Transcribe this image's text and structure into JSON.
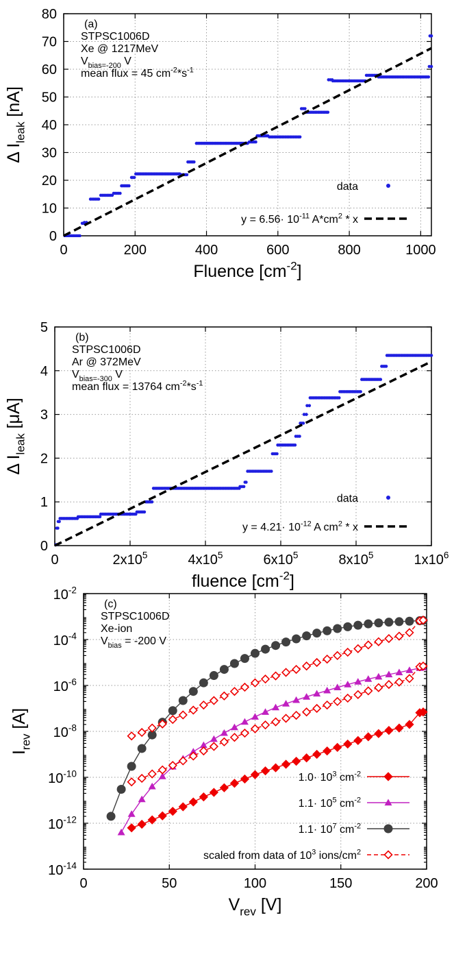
{
  "chart_data": [
    {
      "type": "scatter",
      "panel": "(a)",
      "annotation": [
        "STPSC1006D",
        "Xe @ 1217MeV",
        "V_bias=-200 V",
        "mean flux = 45 cm^-2*s^-1"
      ],
      "xlabel": "Fluence [cm^-2]",
      "ylabel": "Δ I_leak [nA]",
      "xlim": [
        0,
        1030
      ],
      "ylim": [
        0,
        80
      ],
      "xticks": [
        0,
        200,
        400,
        600,
        800,
        1000
      ],
      "xtick_labels": [
        "0",
        "200",
        "400",
        "600",
        "800",
        "1000"
      ],
      "yticks": [
        0,
        10,
        20,
        30,
        40,
        50,
        60,
        70,
        80
      ],
      "ytick_labels": [
        "0",
        "10",
        "20",
        "30",
        "40",
        "50",
        "60",
        "70",
        "80"
      ],
      "grid": true,
      "legend_position": "bottom-right",
      "series": [
        {
          "name": "data",
          "style": "points",
          "color": "#1f1fe0",
          "segments": [
            {
              "x": [
                0,
                45
              ],
              "y": 0
            },
            {
              "x": [
                52,
                56
              ],
              "y": 4.5
            },
            {
              "x": [
                58,
                64
              ],
              "y": 4.8
            },
            {
              "x": [
                75,
                98
              ],
              "y": 13.2
            },
            {
              "x": [
                104,
                136
              ],
              "y": 14.6
            },
            {
              "x": [
                140,
                158
              ],
              "y": 15.3
            },
            {
              "x": [
                162,
                183
              ],
              "y": 18.0
            },
            {
              "x": [
                190,
                198
              ],
              "y": 21.0
            },
            {
              "x": [
                202,
                325
              ],
              "y": 22.3
            },
            {
              "x": [
                328,
                345
              ],
              "y": 22.0
            },
            {
              "x": [
                348,
                365
              ],
              "y": 26.6
            },
            {
              "x": [
                372,
                515
              ],
              "y": 33.3
            },
            {
              "x": [
                520,
                538
              ],
              "y": 33.8
            },
            {
              "x": [
                542,
                572
              ],
              "y": 36.0
            },
            {
              "x": [
                576,
                662
              ],
              "y": 35.6
            },
            {
              "x": [
                666,
                676
              ],
              "y": 45.8
            },
            {
              "x": [
                678,
                740
              ],
              "y": 44.5
            },
            {
              "x": [
                742,
                752
              ],
              "y": 56.2
            },
            {
              "x": [
                754,
                845
              ],
              "y": 55.8
            },
            {
              "x": [
                848,
                880
              ],
              "y": 57.8
            },
            {
              "x": [
                882,
                1022
              ],
              "y": 57.2
            },
            {
              "x": [
                1024,
                1030
              ],
              "y": 61.0
            },
            {
              "x": [
                1026,
                1030
              ],
              "y": 72.0
            }
          ]
        },
        {
          "name": "y = 6.56· 10^-11 A*cm^2 * x",
          "style": "dashed-line",
          "color": "#000000",
          "slope": 0.0656
        }
      ]
    },
    {
      "type": "scatter",
      "panel": "(b)",
      "annotation": [
        "STPSC1006D",
        "Ar @ 372MeV",
        "V_bias=-300 V",
        "mean flux = 13764 cm^-2*s^-1"
      ],
      "xlabel": "fluence [cm^-2]",
      "ylabel": "Δ I_leak [μA]",
      "xlim": [
        0,
        1000000
      ],
      "ylim": [
        0,
        5
      ],
      "xticks": [
        0,
        200000,
        400000,
        600000,
        800000,
        1000000
      ],
      "xtick_labels": [
        "0",
        "2x10^5",
        "4x10^5",
        "6x10^5",
        "8x10^5",
        "1x10^6"
      ],
      "yticks": [
        0,
        1,
        2,
        3,
        4,
        5
      ],
      "ytick_labels": [
        "0",
        "1",
        "2",
        "3",
        "4",
        "5"
      ],
      "grid": true,
      "legend_position": "bottom-right",
      "series": [
        {
          "name": "data",
          "style": "points",
          "color": "#1f1fe0",
          "segments": [
            {
              "x": [
                0,
                4000
              ],
              "y": 0.02
            },
            {
              "x": [
                5000,
                8000
              ],
              "y": 0.4
            },
            {
              "x": [
                9000,
                12000
              ],
              "y": 0.55
            },
            {
              "x": [
                14000,
                60000
              ],
              "y": 0.62
            },
            {
              "x": [
                62000,
                120000
              ],
              "y": 0.66
            },
            {
              "x": [
                122000,
                215000
              ],
              "y": 0.72
            },
            {
              "x": [
                218000,
                238000
              ],
              "y": 0.77
            },
            {
              "x": [
                242000,
                258000
              ],
              "y": 1.0
            },
            {
              "x": [
                262000,
                490000
              ],
              "y": 1.31
            },
            {
              "x": [
                492000,
                502000
              ],
              "y": 1.35
            },
            {
              "x": [
                505000,
                508000
              ],
              "y": 1.45
            },
            {
              "x": [
                512000,
                575000
              ],
              "y": 1.7
            },
            {
              "x": [
                578000,
                590000
              ],
              "y": 2.1
            },
            {
              "x": [
                592000,
                638000
              ],
              "y": 2.3
            },
            {
              "x": [
                640000,
                650000
              ],
              "y": 2.5
            },
            {
              "x": [
                652000,
                660000
              ],
              "y": 2.8
            },
            {
              "x": [
                662000,
                668000
              ],
              "y": 3.0
            },
            {
              "x": [
                670000,
                676000
              ],
              "y": 3.2
            },
            {
              "x": [
                678000,
                755000
              ],
              "y": 3.38
            },
            {
              "x": [
                757000,
                812000
              ],
              "y": 3.52
            },
            {
              "x": [
                815000,
                865000
              ],
              "y": 3.8
            },
            {
              "x": [
                868000,
                880000
              ],
              "y": 4.1
            },
            {
              "x": [
                882000,
                1000000
              ],
              "y": 4.35
            }
          ]
        },
        {
          "name": "y = 4.21· 10^-12 A cm^2 * x",
          "style": "dashed-line",
          "color": "#000000",
          "slope": 4.21e-06
        }
      ]
    },
    {
      "type": "line",
      "panel": "(c)",
      "annotation": [
        "STPSC1006D",
        "Xe-ion",
        "V_bias = -200 V"
      ],
      "xlabel": "V_rev [V]",
      "ylabel": "I_rev [A]",
      "xlim": [
        0,
        200
      ],
      "ylim": [
        1e-14,
        0.01
      ],
      "yscale": "log",
      "xticks": [
        0,
        50,
        100,
        150,
        200
      ],
      "xtick_labels": [
        "0",
        "50",
        "100",
        "150",
        "200"
      ],
      "ytick_exponents": [
        -14,
        -12,
        -10,
        -8,
        -6,
        -4,
        -2
      ],
      "grid": true,
      "legend_position": "bottom-right",
      "series": [
        {
          "name": "1.0· 10^3 cm^-2",
          "marker": "diamond",
          "color": "#ee0000",
          "x": [
            28,
            34,
            40,
            46,
            52,
            58,
            64,
            70,
            76,
            82,
            88,
            94,
            100,
            106,
            112,
            118,
            124,
            130,
            136,
            142,
            148,
            154,
            160,
            166,
            172,
            178,
            184,
            190,
            196,
            198
          ],
          "y": [
            6.3e-13,
            9e-13,
            1.4e-12,
            2.1e-12,
            3.3e-12,
            5.2e-12,
            8.4e-12,
            1.4e-11,
            2.2e-11,
            3.5e-11,
            5.5e-11,
            8.4e-11,
            1.3e-10,
            1.9e-10,
            2.6e-10,
            3.7e-10,
            5e-10,
            7e-10,
            1e-09,
            1.4e-09,
            2e-09,
            2.8e-09,
            4e-09,
            5.8e-09,
            8e-09,
            1.1e-08,
            1.4e-08,
            2e-08,
            6.5e-08,
            7e-08
          ]
        },
        {
          "name": "1.1· 10^5 cm^-2",
          "marker": "triangle",
          "color": "#c020c0",
          "x": [
            22,
            28,
            34,
            40,
            46,
            52,
            58,
            64,
            70,
            76,
            82,
            88,
            94,
            100,
            106,
            112,
            118,
            124,
            130,
            136,
            142,
            148,
            154,
            160,
            166,
            172,
            178,
            184,
            190,
            196,
            198
          ],
          "y": [
            4e-13,
            2.5e-12,
            1.1e-11,
            4e-11,
            1.1e-10,
            2.9e-10,
            6.5e-10,
            1.3e-09,
            2.5e-09,
            4.6e-09,
            8.5e-09,
            1.5e-08,
            2.6e-08,
            4.3e-08,
            7e-08,
            1.1e-07,
            1.6e-07,
            2.3e-07,
            3.2e-07,
            4.4e-07,
            6e-07,
            8.2e-07,
            1.1e-06,
            1.45e-06,
            1.9e-06,
            2.4e-06,
            3e-06,
            3.7e-06,
            4.6e-06,
            5.7e-06,
            6e-06
          ]
        },
        {
          "name": "1.1· 10^7 cm^-2",
          "marker": "circle",
          "color": "#404040",
          "x": [
            16,
            22,
            28,
            34,
            40,
            46,
            52,
            58,
            64,
            70,
            76,
            82,
            88,
            94,
            100,
            106,
            112,
            118,
            124,
            130,
            136,
            142,
            148,
            154,
            160,
            166,
            172,
            178,
            184,
            190,
            196,
            198
          ],
          "y": [
            2e-12,
            3e-11,
            3e-10,
            1.8e-09,
            7e-09,
            2.5e-08,
            8e-08,
            2.2e-07,
            5.5e-07,
            1.3e-06,
            2.7e-06,
            5e-06,
            9e-06,
            1.5e-05,
            2.5e-05,
            3.8e-05,
            5.5e-05,
            7.8e-05,
            0.000107,
            0.000145,
            0.00019,
            0.00024,
            0.0003,
            0.00036,
            0.00042,
            0.00048,
            0.00053,
            0.00057,
            0.0006,
            0.00063,
            0.00066,
            0.00068
          ]
        },
        {
          "name": "scaled from data of 10^3 ions/cm^2",
          "marker": "open-diamond",
          "line": "dashed",
          "color": "#ee0000",
          "x": [
            28,
            34,
            40,
            46,
            52,
            58,
            64,
            70,
            76,
            82,
            88,
            94,
            100,
            106,
            112,
            118,
            124,
            130,
            136,
            142,
            148,
            154,
            160,
            166,
            172,
            178,
            184,
            190,
            196,
            198
          ],
          "y": [
            6.3e-09,
            9e-09,
            1.4e-08,
            2.1e-08,
            3.3e-08,
            5.2e-08,
            8.4e-08,
            1.4e-07,
            2.2e-07,
            3.5e-07,
            5.5e-07,
            8.4e-07,
            1.3e-06,
            1.9e-06,
            2.6e-06,
            3.7e-06,
            5e-06,
            7e-06,
            1e-05,
            1.4e-05,
            2e-05,
            2.8e-05,
            4e-05,
            5.8e-05,
            8e-05,
            0.00011,
            0.00014,
            0.0002,
            0.00065,
            0.0007
          ]
        },
        {
          "name": "scaled from data of 10^3 ions/cm^2",
          "marker": "open-diamond",
          "line": "dashed",
          "color": "#ee0000",
          "x": [
            28,
            34,
            40,
            46,
            52,
            58,
            64,
            70,
            76,
            82,
            88,
            94,
            100,
            106,
            112,
            118,
            124,
            130,
            136,
            142,
            148,
            154,
            160,
            166,
            172,
            178,
            184,
            190,
            196,
            198
          ],
          "y": [
            6.3e-11,
            9e-11,
            1.4e-10,
            2.1e-10,
            3.3e-10,
            5.2e-10,
            8.4e-10,
            1.4e-09,
            2.2e-09,
            3.5e-09,
            5.5e-09,
            8.4e-09,
            1.3e-08,
            1.9e-08,
            2.6e-08,
            3.7e-08,
            5e-08,
            7e-08,
            1e-07,
            1.4e-07,
            2e-07,
            2.8e-07,
            4e-07,
            5.8e-07,
            8e-07,
            1.1e-06,
            1.4e-06,
            2e-06,
            6.5e-06,
            7e-06
          ]
        }
      ]
    }
  ]
}
